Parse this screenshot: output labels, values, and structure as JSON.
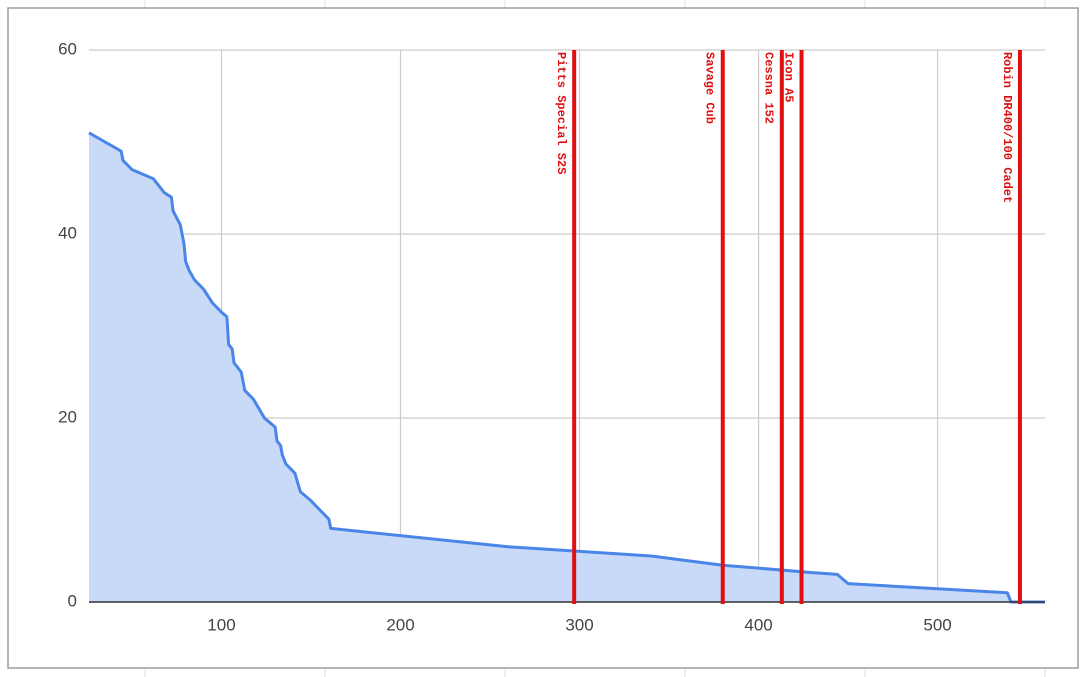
{
  "chart_data": {
    "type": "area",
    "x": [
      26,
      35,
      44,
      45,
      50,
      62,
      68,
      72,
      73,
      77,
      79,
      80,
      82,
      85,
      90,
      95,
      100,
      103,
      104,
      106,
      107,
      111,
      113,
      118,
      124,
      130,
      131,
      133,
      134,
      136,
      141,
      144,
      150,
      155,
      160,
      161,
      260,
      340,
      380,
      430,
      444,
      450,
      539,
      541,
      560
    ],
    "series": [
      {
        "color": "#4a86e8",
        "fill": "#c9daf8",
        "values": [
          51,
          50,
          49,
          48,
          47,
          46,
          44.5,
          44,
          42.5,
          41,
          39,
          37,
          36,
          35,
          34,
          32.5,
          31.5,
          31,
          28,
          27.5,
          26,
          25,
          23,
          22,
          20,
          19,
          17.5,
          17,
          16,
          15,
          14,
          12,
          11,
          10,
          9,
          8,
          6,
          5,
          4,
          3.2,
          3,
          2,
          1,
          0,
          0
        ]
      }
    ],
    "xlim": [
      26,
      560
    ],
    "xticks": [
      100,
      200,
      300,
      400,
      500
    ],
    "ylim": [
      0,
      60
    ],
    "yticks": [
      0,
      20,
      40,
      60
    ],
    "grid": true,
    "annotations": [
      {
        "label": "Pitts Special S2S",
        "x": 297
      },
      {
        "label": "Savage Cub",
        "x": 380
      },
      {
        "label": "Cessna 152",
        "x": 413
      },
      {
        "label": "Icon A5",
        "x": 424
      },
      {
        "label": "Robin DR400/100 Cadet",
        "x": 546
      }
    ],
    "annotation_color": "#e01010"
  }
}
